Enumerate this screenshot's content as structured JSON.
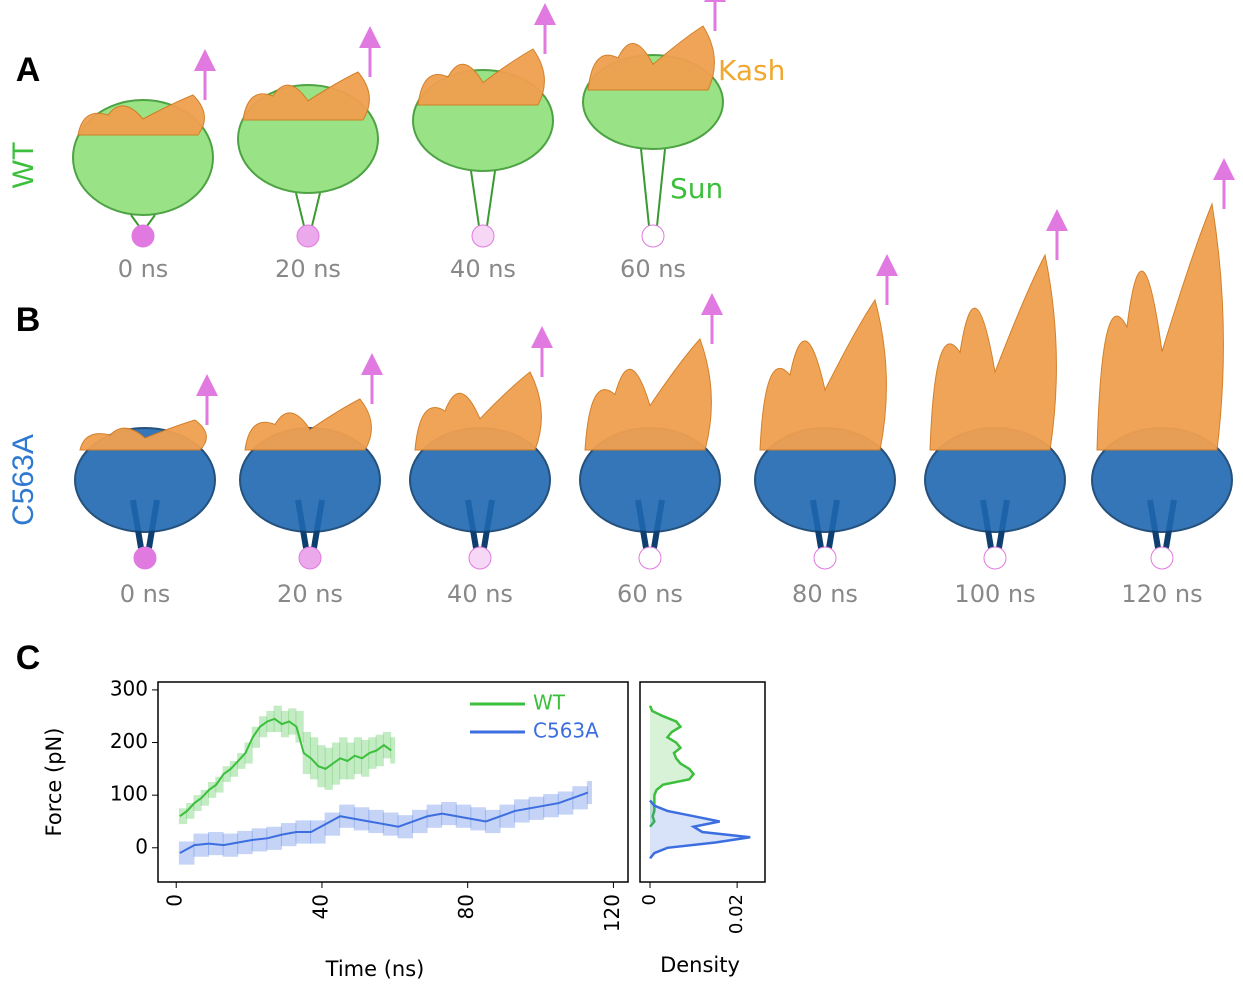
{
  "panels": [
    {
      "label": "A",
      "row_label": "WT",
      "times": [
        "0 ns",
        "20 ns",
        "40 ns",
        "60 ns"
      ],
      "annotations": [
        "Kash",
        "Sun"
      ]
    },
    {
      "label": "B",
      "row_label": "C563A",
      "times": [
        "0 ns",
        "20 ns",
        "40 ns",
        "60 ns",
        "80 ns",
        "100 ns",
        "120 ns"
      ]
    }
  ],
  "panel_c_label": "C",
  "chart_data": [
    {
      "type": "line",
      "xlabel": "Time (ns)",
      "ylabel": "Force (pN)",
      "xlim": [
        -5,
        124
      ],
      "ylim": [
        -65,
        315
      ],
      "xticks": [
        0,
        40,
        80,
        120
      ],
      "yticks": [
        0,
        100,
        200,
        300
      ],
      "series": [
        {
          "name": "WT",
          "color": "#3cbf3c",
          "x": [
            1,
            3,
            5,
            7,
            9,
            11,
            13,
            15,
            17,
            19,
            21,
            23,
            25,
            27,
            29,
            31,
            33,
            35,
            37,
            39,
            41,
            43,
            45,
            47,
            49,
            51,
            53,
            55,
            57,
            59
          ],
          "values": [
            60,
            70,
            85,
            95,
            110,
            120,
            140,
            150,
            165,
            180,
            210,
            230,
            240,
            245,
            235,
            240,
            230,
            180,
            170,
            155,
            150,
            160,
            170,
            165,
            175,
            170,
            180,
            185,
            195,
            185
          ],
          "errors": [
            15,
            15,
            15,
            15,
            15,
            15,
            15,
            15,
            15,
            20,
            20,
            20,
            20,
            25,
            25,
            25,
            30,
            40,
            40,
            40,
            40,
            40,
            40,
            35,
            35,
            35,
            30,
            30,
            25,
            25
          ]
        },
        {
          "name": "C563A",
          "color": "#3d6ee0",
          "x": [
            1,
            5,
            9,
            13,
            17,
            21,
            25,
            29,
            33,
            37,
            41,
            45,
            49,
            53,
            57,
            61,
            65,
            69,
            73,
            77,
            81,
            85,
            89,
            93,
            97,
            101,
            105,
            109,
            113
          ],
          "values": [
            -10,
            5,
            8,
            5,
            10,
            15,
            18,
            25,
            30,
            30,
            45,
            60,
            55,
            50,
            45,
            40,
            50,
            60,
            65,
            60,
            55,
            50,
            60,
            70,
            75,
            80,
            85,
            95,
            105
          ],
          "errors": [
            22,
            22,
            22,
            22,
            22,
            22,
            22,
            22,
            22,
            22,
            22,
            22,
            22,
            22,
            22,
            22,
            22,
            22,
            22,
            22,
            22,
            22,
            22,
            22,
            22,
            22,
            22,
            22,
            22
          ]
        }
      ]
    },
    {
      "type": "density",
      "xlabel": "Density",
      "xlim": [
        -0.0023,
        0.0264
      ],
      "ylim": [
        -65,
        315
      ],
      "xticks": [
        0,
        0.02
      ],
      "series": [
        {
          "color": "#3cbf3c",
          "y": [
            40,
            50,
            60,
            70,
            80,
            90,
            100,
            110,
            120,
            130,
            140,
            150,
            160,
            170,
            180,
            190,
            200,
            210,
            220,
            230,
            240,
            250,
            260,
            270
          ],
          "values": [
            0,
            0.001,
            0.0006,
            0.001,
            0.001,
            0.001,
            0.001,
            0.0015,
            0.003,
            0.009,
            0.01,
            0.009,
            0.007,
            0.006,
            0.0055,
            0.007,
            0.006,
            0.004,
            0.005,
            0.007,
            0.006,
            0.003,
            0.0005,
            0
          ]
        },
        {
          "color": "#3d6ee0",
          "y": [
            -20,
            -10,
            0,
            10,
            20,
            30,
            40,
            50,
            60,
            70,
            80,
            90
          ],
          "values": [
            0,
            0.001,
            0.004,
            0.015,
            0.023,
            0.012,
            0.01,
            0.016,
            0.01,
            0.004,
            0.001,
            0
          ]
        }
      ]
    }
  ]
}
